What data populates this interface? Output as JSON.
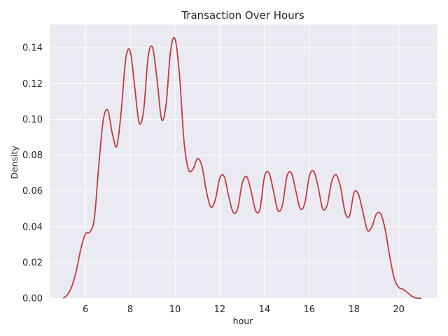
{
  "chart_data": {
    "type": "line",
    "title": "Transaction Over Hours",
    "xlabel": "hour",
    "ylabel": "Density",
    "xlim": [
      4.4,
      21.7
    ],
    "ylim": [
      0,
      0.153
    ],
    "xticks": [
      6,
      8,
      10,
      12,
      14,
      16,
      18,
      20
    ],
    "yticks": [
      0.0,
      0.02,
      0.04,
      0.06,
      0.08,
      0.1,
      0.12,
      0.14
    ],
    "ytick_labels": [
      "0.00",
      "0.02",
      "0.04",
      "0.06",
      "0.08",
      "0.10",
      "0.12",
      "0.14"
    ],
    "grid": true,
    "legend": "none",
    "colors": {
      "line": "#c03d3e",
      "plot_bg": "#eaeaf2",
      "grid": "#ffffff"
    },
    "series": [
      {
        "x": [
          5.0,
          5.2,
          5.4,
          5.6,
          5.8,
          6.0,
          6.2,
          6.4,
          6.6,
          6.8,
          7.0,
          7.2,
          7.4,
          7.6,
          7.8,
          8.0,
          8.2,
          8.4,
          8.6,
          8.8,
          9.0,
          9.2,
          9.4,
          9.6,
          9.8,
          10.0,
          10.2,
          10.4,
          10.6,
          10.8,
          11.0,
          11.2,
          11.4,
          11.6,
          11.8,
          12.0,
          12.2,
          12.4,
          12.6,
          12.8,
          13.0,
          13.2,
          13.4,
          13.6,
          13.8,
          14.0,
          14.2,
          14.4,
          14.6,
          14.8,
          15.0,
          15.2,
          15.4,
          15.6,
          15.8,
          16.0,
          16.2,
          16.4,
          16.6,
          16.8,
          17.0,
          17.2,
          17.4,
          17.6,
          17.8,
          18.0,
          18.2,
          18.4,
          18.6,
          18.8,
          19.0,
          19.2,
          19.4,
          19.6,
          19.8,
          20.0,
          20.2,
          20.4,
          20.6,
          20.8,
          21.0
        ],
        "y": [
          0.0,
          0.002,
          0.007,
          0.016,
          0.028,
          0.036,
          0.037,
          0.045,
          0.075,
          0.1,
          0.105,
          0.092,
          0.085,
          0.105,
          0.134,
          0.138,
          0.118,
          0.098,
          0.105,
          0.135,
          0.14,
          0.122,
          0.1,
          0.108,
          0.138,
          0.145,
          0.125,
          0.088,
          0.072,
          0.072,
          0.078,
          0.074,
          0.06,
          0.051,
          0.055,
          0.067,
          0.068,
          0.057,
          0.048,
          0.05,
          0.064,
          0.068,
          0.06,
          0.049,
          0.05,
          0.068,
          0.07,
          0.06,
          0.049,
          0.052,
          0.068,
          0.07,
          0.06,
          0.05,
          0.053,
          0.068,
          0.071,
          0.062,
          0.05,
          0.052,
          0.065,
          0.069,
          0.062,
          0.048,
          0.046,
          0.059,
          0.058,
          0.048,
          0.038,
          0.04,
          0.047,
          0.047,
          0.038,
          0.023,
          0.011,
          0.006,
          0.005,
          0.003,
          0.001,
          0.0,
          0.0
        ]
      }
    ]
  }
}
